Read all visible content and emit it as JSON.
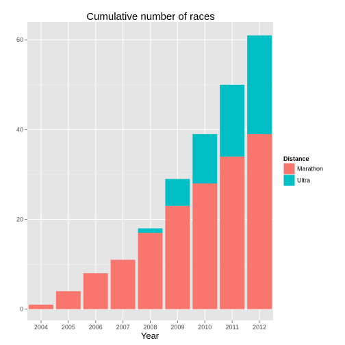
{
  "chart_data": {
    "type": "bar",
    "stacked": true,
    "title": "Cumulative number of races",
    "xlabel": "Year",
    "ylabel": "",
    "categories": [
      "2004",
      "2005",
      "2006",
      "2007",
      "2008",
      "2009",
      "2010",
      "2011",
      "2012"
    ],
    "series": [
      {
        "name": "Marathon",
        "values": [
          1,
          4,
          8,
          11,
          17,
          23,
          28,
          34,
          39
        ],
        "color": "#F8766D"
      },
      {
        "name": "Ultra",
        "values": [
          0,
          0,
          0,
          0,
          1,
          6,
          11,
          16,
          22
        ],
        "color": "#00BFC4"
      }
    ],
    "yticks": [
      0,
      20,
      40,
      60
    ],
    "ylim": [
      -2.5,
      64
    ],
    "grid": true,
    "background": "#E5E5E5",
    "legend": {
      "title": "Distance",
      "position": "right"
    }
  }
}
